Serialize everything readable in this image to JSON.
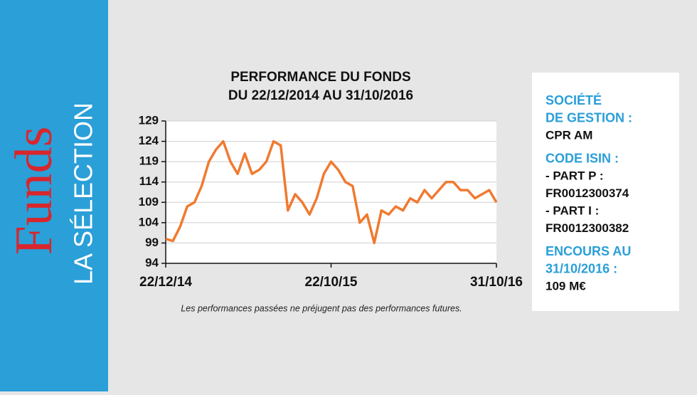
{
  "sidebar": {
    "brand": "Funds",
    "subtitle": "LA SÉLECTION"
  },
  "chart_data": {
    "type": "line",
    "title": "PERFORMANCE DU FONDS",
    "subtitle": "DU 22/12/2014 AU 31/10/2016",
    "note": "Les performances passées ne préjugent pas des performances futures.",
    "categories": [
      "22/12/14",
      null,
      null,
      null,
      null,
      null,
      null,
      null,
      null,
      null,
      null,
      null,
      null,
      null,
      null,
      null,
      null,
      null,
      null,
      null,
      null,
      null,
      null,
      "22/10/15",
      null,
      null,
      null,
      null,
      null,
      null,
      null,
      null,
      null,
      null,
      null,
      null,
      null,
      null,
      null,
      null,
      null,
      null,
      null,
      null,
      null,
      null,
      "31/10/16"
    ],
    "values": [
      100,
      99.5,
      103,
      108,
      109,
      113,
      119,
      122,
      124,
      119,
      116,
      121,
      116,
      117,
      119,
      124,
      123,
      107,
      111,
      109,
      106,
      110,
      116,
      119,
      117,
      114,
      113,
      104,
      106,
      99,
      107,
      106,
      108,
      107,
      110,
      109,
      112,
      110,
      112,
      114,
      114,
      112,
      112,
      110,
      111,
      112,
      109
    ],
    "color": "#f07a30",
    "ylim": [
      94,
      129
    ],
    "yticks": [
      94,
      99,
      104,
      109,
      114,
      119,
      124,
      129
    ],
    "grid": true
  },
  "info": {
    "lines": [
      {
        "text": "SOCIÉTÉ",
        "kind": "heading"
      },
      {
        "text": "DE GESTION :",
        "kind": "heading"
      },
      {
        "text": "CPR AM",
        "kind": "value"
      },
      {
        "text": "CODE ISIN :",
        "kind": "heading"
      },
      {
        "text": "- PART P :",
        "kind": "value"
      },
      {
        "text": "FR0012300374",
        "kind": "value"
      },
      {
        "text": "- PART I :",
        "kind": "value"
      },
      {
        "text": "FR0012300382",
        "kind": "value"
      },
      {
        "text": "ENCOURS AU",
        "kind": "heading"
      },
      {
        "text": "31/10/2016 :",
        "kind": "heading"
      },
      {
        "text": "109 M€",
        "kind": "value"
      }
    ]
  }
}
